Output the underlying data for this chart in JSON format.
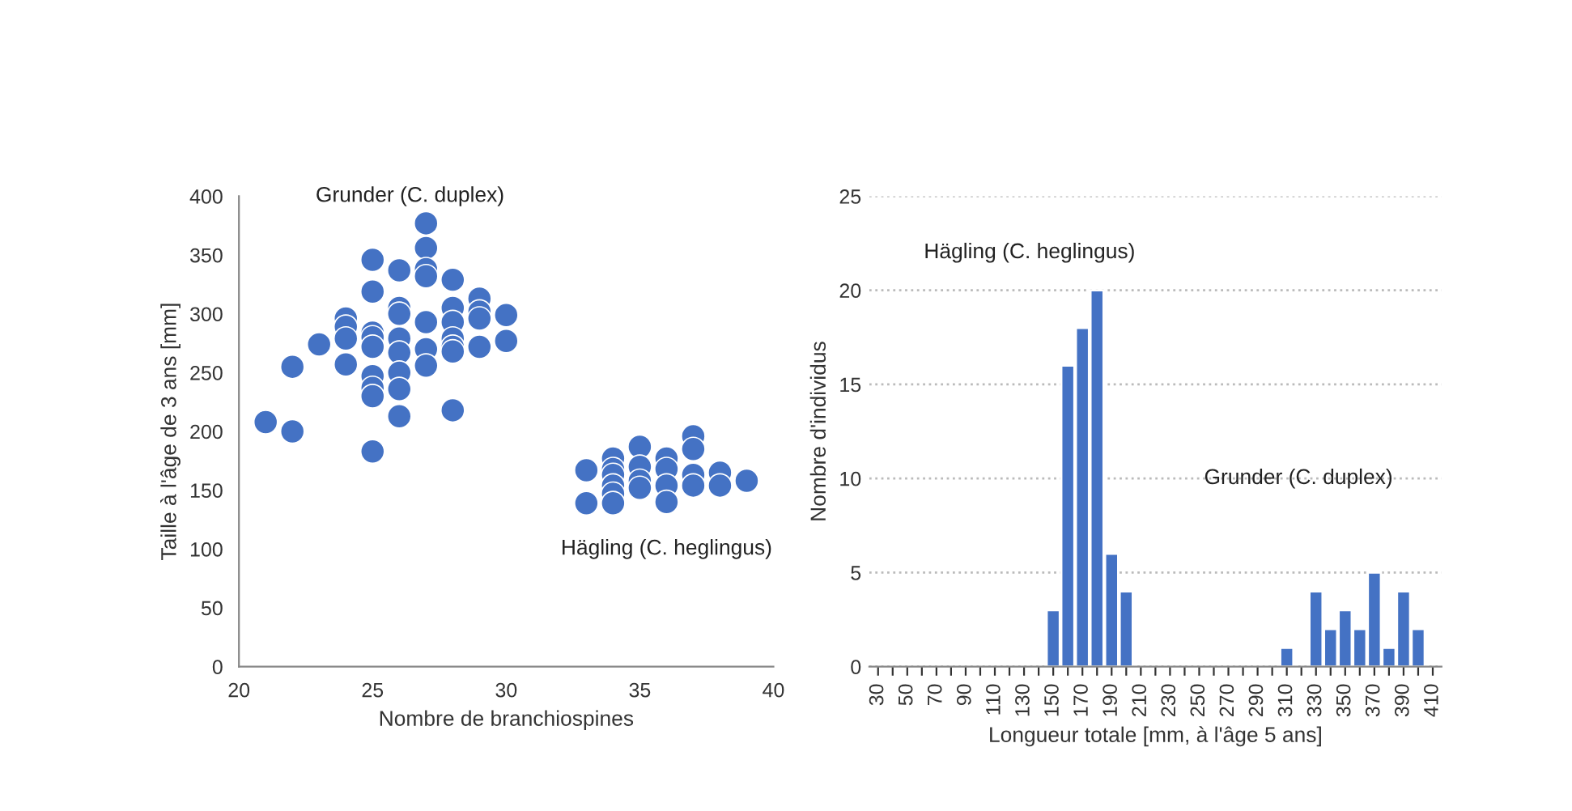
{
  "chart_data": [
    {
      "type": "scatter",
      "xlabel": "Nombre de branchiospines",
      "ylabel": "Taille à l'âge de 3 ans [mm]",
      "x": [
        21,
        22,
        22,
        23,
        24,
        24,
        24,
        24,
        25,
        25,
        25,
        25,
        25,
        25,
        25,
        25,
        25,
        26,
        26,
        26,
        26,
        26,
        26,
        26,
        26,
        27,
        27,
        27,
        27,
        27,
        27,
        27,
        28,
        28,
        28,
        28,
        28,
        28,
        28,
        29,
        29,
        29,
        29,
        30,
        30,
        33,
        33,
        34,
        34,
        34,
        34,
        34,
        34,
        35,
        35,
        35,
        35,
        36,
        36,
        36,
        36,
        37,
        37,
        37,
        37,
        38,
        38,
        39
      ],
      "values": [
        208,
        255,
        200,
        274,
        296,
        289,
        279,
        257,
        346,
        319,
        284,
        280,
        272,
        247,
        237,
        230,
        183,
        337,
        305,
        300,
        279,
        267,
        250,
        236,
        213,
        377,
        356,
        338,
        332,
        293,
        270,
        256,
        329,
        305,
        293,
        279,
        272,
        268,
        218,
        313,
        302,
        296,
        272,
        299,
        277,
        167,
        139,
        177,
        168,
        163,
        154,
        147,
        139,
        187,
        170,
        158,
        152,
        177,
        168,
        154,
        140,
        196,
        185,
        163,
        154,
        165,
        154,
        158
      ],
      "color": "#4472c4",
      "marker": "circle",
      "xlim": [
        20,
        40
      ],
      "xticks": [
        20,
        25,
        30,
        35,
        40
      ],
      "ylim": [
        0,
        400
      ],
      "yticks": [
        0,
        50,
        100,
        150,
        200,
        250,
        300,
        350,
        400
      ],
      "grid": false,
      "annotations": [
        "Grunder (C. duplex)",
        "Hägling (C. heglingus)"
      ]
    },
    {
      "type": "bar",
      "xlabel": "Longueur totale [mm, à l'âge 5 ans]",
      "ylabel": "Nombre d'individus",
      "categories": [
        "30",
        null,
        "50",
        null,
        "70",
        null,
        "90",
        null,
        "110",
        null,
        "130",
        null,
        "150",
        null,
        "170",
        null,
        "190",
        null,
        "210",
        null,
        "230",
        null,
        "250",
        null,
        "270",
        null,
        "290",
        null,
        "310",
        null,
        "330",
        null,
        "350",
        null,
        "370",
        null,
        "390",
        null,
        "410"
      ],
      "values": [
        0,
        0,
        0,
        0,
        0,
        0,
        0,
        0,
        0,
        0,
        0,
        0,
        3,
        16,
        18,
        20,
        6,
        4,
        0,
        0,
        0,
        0,
        0,
        0,
        0,
        0,
        0,
        0,
        1,
        0,
        4,
        2,
        3,
        2,
        5,
        1,
        4,
        2,
        0
      ],
      "color": "#4472c4",
      "ylim": [
        0,
        25
      ],
      "yticks": [
        0,
        5,
        10,
        15,
        20,
        25
      ],
      "grid": "y",
      "annotations": [
        "Hägling (C. heglingus)",
        "Grunder (C. duplex)"
      ]
    }
  ]
}
